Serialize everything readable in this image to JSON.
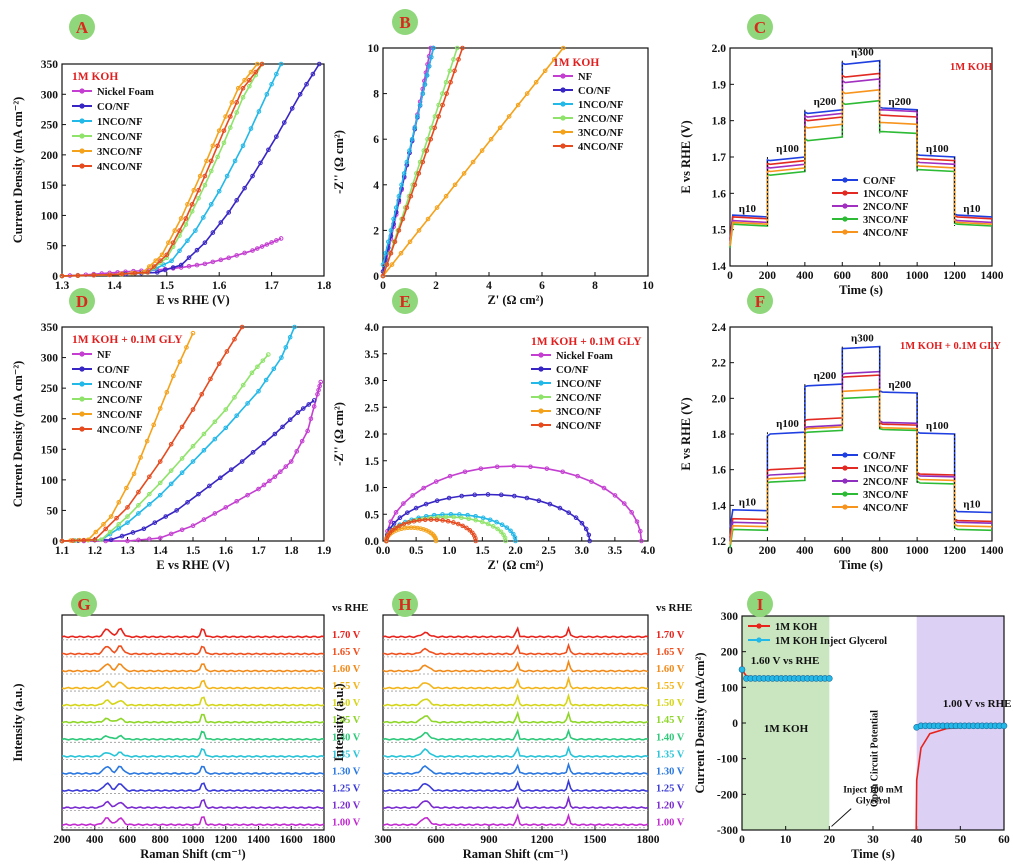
{
  "panel_badge_color": "#8fd77a",
  "panel_badge_text_color": "#d62b1e",
  "chart_data": [
    {
      "id": "A",
      "type": "line",
      "xlabel": "E vs RHE (V)",
      "ylabel": "Current Density (mA cm⁻²)",
      "xlim": [
        1.3,
        1.85
      ],
      "ylim": [
        0,
        350
      ],
      "xticks": [
        "1.3",
        "1.4",
        "1.5",
        "1.6",
        "1.7",
        "1.8"
      ],
      "yticks": [
        "0",
        "50",
        "100",
        "150",
        "200",
        "250",
        "300",
        "350"
      ],
      "legend_title": "1M KOH",
      "legend_title_color": "#e21d1d",
      "legend_position": "top-left",
      "series": [
        {
          "name": "Nickel Foam",
          "color": "#c43fd1",
          "x": [
            1.3,
            1.35,
            1.4,
            1.45,
            1.5,
            1.55,
            1.6,
            1.65,
            1.7,
            1.73,
            1.76
          ],
          "y": [
            0,
            2,
            5,
            8,
            10,
            14,
            20,
            30,
            42,
            52,
            62
          ]
        },
        {
          "name": "CO/NF",
          "color": "#3826c4",
          "x": [
            1.3,
            1.4,
            1.5,
            1.55,
            1.6,
            1.65,
            1.7,
            1.75,
            1.8,
            1.84
          ],
          "y": [
            0,
            2,
            6,
            18,
            55,
            105,
            165,
            230,
            300,
            350
          ]
        },
        {
          "name": "1NCO/NF",
          "color": "#22b8e8",
          "x": [
            1.3,
            1.4,
            1.48,
            1.53,
            1.58,
            1.63,
            1.68,
            1.73,
            1.76
          ],
          "y": [
            0,
            2,
            6,
            25,
            75,
            140,
            215,
            300,
            350
          ]
        },
        {
          "name": "2NCO/NF",
          "color": "#8fe36a",
          "x": [
            1.3,
            1.4,
            1.48,
            1.52,
            1.56,
            1.6,
            1.64,
            1.68,
            1.72
          ],
          "y": [
            0,
            2,
            6,
            30,
            85,
            150,
            220,
            295,
            350
          ]
        },
        {
          "name": "3NCO/NF",
          "color": "#f4a21b",
          "x": [
            1.3,
            1.4,
            1.47,
            1.51,
            1.55,
            1.59,
            1.63,
            1.67,
            1.71
          ],
          "y": [
            0,
            2,
            6,
            35,
            95,
            165,
            240,
            310,
            350
          ]
        },
        {
          "name": "4NCO/NF",
          "color": "#e54b1f",
          "x": [
            1.3,
            1.4,
            1.48,
            1.52,
            1.56,
            1.6,
            1.64,
            1.68,
            1.72
          ],
          "y": [
            0,
            2,
            6,
            35,
            95,
            165,
            240,
            310,
            350
          ]
        }
      ]
    },
    {
      "id": "B",
      "type": "line",
      "xlabel": "Z' (Ω cm²)",
      "ylabel": "-Z'' (Ω cm²)",
      "xlim": [
        0,
        10
      ],
      "ylim": [
        0,
        10
      ],
      "xticks": [
        "0",
        "2",
        "4",
        "6",
        "8",
        "10"
      ],
      "yticks": [
        "0",
        "2",
        "4",
        "6",
        "8",
        "10"
      ],
      "legend_title": "1M KOH",
      "legend_title_color": "#e21d1d",
      "legend_position": "top-right",
      "series": [
        {
          "name": "NF",
          "color": "#c43fd1",
          "x": [
            0,
            0.5,
            1,
            1.5,
            1.8
          ],
          "y": [
            0,
            2.7,
            5.4,
            8.2,
            10
          ]
        },
        {
          "name": "CO/NF",
          "color": "#3826c4",
          "x": [
            0,
            0.5,
            1,
            1.5,
            1.9
          ],
          "y": [
            0.2,
            2.8,
            5.4,
            8,
            10
          ]
        },
        {
          "name": "1NCO/NF",
          "color": "#22b8e8",
          "x": [
            0,
            0.5,
            1,
            1.5,
            1.9
          ],
          "y": [
            0.5,
            3,
            5.5,
            8,
            10
          ]
        },
        {
          "name": "2NCO/NF",
          "color": "#8fe36a",
          "x": [
            0,
            0.7,
            1.4,
            2.1,
            2.8
          ],
          "y": [
            0,
            2.5,
            5,
            7.5,
            10
          ]
        },
        {
          "name": "3NCO/NF",
          "color": "#f4a21b",
          "x": [
            0,
            1.7,
            3.4,
            5.1,
            6.8
          ],
          "y": [
            0,
            2.5,
            5,
            7.5,
            10
          ]
        },
        {
          "name": "4NCO/NF",
          "color": "#e54b1f",
          "x": [
            0,
            0.75,
            1.5,
            2.25,
            3
          ],
          "y": [
            0,
            2.5,
            5,
            7.5,
            10
          ]
        }
      ]
    },
    {
      "id": "C",
      "type": "line",
      "xlabel": "Time (s)",
      "ylabel": "E vs RHE (V)",
      "xlim": [
        0,
        1400
      ],
      "ylim": [
        1.4,
        2.0
      ],
      "xticks": [
        "0",
        "200",
        "400",
        "600",
        "800",
        "1000",
        "1200",
        "1400"
      ],
      "yticks": [
        "1.4",
        "1.5",
        "1.6",
        "1.7",
        "1.8",
        "1.9",
        "2.0"
      ],
      "legend_title": "1M KOH",
      "legend_title_color": "#e21d1d",
      "legend_position": "bottom-right",
      "step_labels": [
        "η10",
        "η100",
        "η200",
        "η300",
        "η200",
        "η100",
        "η10"
      ],
      "step_bounds": [
        0,
        200,
        400,
        600,
        800,
        1000,
        1200,
        1400
      ],
      "series": [
        {
          "name": "CO/NF",
          "color": "#1f3fe0",
          "levels": [
            1.535,
            1.7,
            1.83,
            1.965,
            1.83,
            1.7,
            1.535
          ]
        },
        {
          "name": "1NCO/NF",
          "color": "#e22a22",
          "levels": [
            1.53,
            1.69,
            1.81,
            1.93,
            1.81,
            1.69,
            1.53
          ]
        },
        {
          "name": "2NCO/NF",
          "color": "#a12fbf",
          "levels": [
            1.52,
            1.68,
            1.82,
            1.915,
            1.825,
            1.68,
            1.52
          ]
        },
        {
          "name": "3NCO/NF",
          "color": "#2dbb35",
          "levels": [
            1.51,
            1.66,
            1.755,
            1.855,
            1.765,
            1.66,
            1.51
          ]
        },
        {
          "name": "4NCO/NF",
          "color": "#f7941d",
          "levels": [
            1.515,
            1.67,
            1.79,
            1.885,
            1.79,
            1.67,
            1.515
          ]
        }
      ]
    },
    {
      "id": "D",
      "type": "line",
      "xlabel": "E vs RHE (V)",
      "ylabel": "Current Density (mA cm⁻²)",
      "xlim": [
        1.1,
        1.9
      ],
      "ylim": [
        0,
        350
      ],
      "xticks": [
        "1.1",
        "1.2",
        "1.3",
        "1.4",
        "1.5",
        "1.6",
        "1.7",
        "1.8",
        "1.9"
      ],
      "yticks": [
        "0",
        "50",
        "100",
        "150",
        "200",
        "250",
        "300",
        "350"
      ],
      "legend_title": "1M KOH + 0.1M GLY",
      "legend_title_color": "#e21d1d",
      "legend_position": "top-left",
      "series": [
        {
          "name": "NF",
          "color": "#c43fd1",
          "x": [
            1.1,
            1.3,
            1.4,
            1.5,
            1.6,
            1.7,
            1.75,
            1.8,
            1.85,
            1.88,
            1.89
          ],
          "y": [
            0,
            0,
            5,
            25,
            55,
            85,
            105,
            130,
            180,
            240,
            260
          ]
        },
        {
          "name": "CO/NF",
          "color": "#3826c4",
          "x": [
            1.1,
            1.25,
            1.35,
            1.45,
            1.55,
            1.65,
            1.75,
            1.82,
            1.87
          ],
          "y": [
            0,
            2,
            20,
            50,
            90,
            130,
            175,
            210,
            230
          ]
        },
        {
          "name": "1NCO/NF",
          "color": "#22b8e8",
          "x": [
            1.1,
            1.22,
            1.3,
            1.4,
            1.5,
            1.6,
            1.7,
            1.77,
            1.81
          ],
          "y": [
            0,
            2,
            30,
            75,
            130,
            185,
            245,
            300,
            350
          ]
        },
        {
          "name": "2NCO/NF",
          "color": "#8fe36a",
          "x": [
            1.1,
            1.22,
            1.3,
            1.4,
            1.5,
            1.6,
            1.68,
            1.73
          ],
          "y": [
            0,
            2,
            40,
            95,
            155,
            215,
            275,
            305
          ]
        },
        {
          "name": "3NCO/NF",
          "color": "#f4a21b",
          "x": [
            1.1,
            1.18,
            1.25,
            1.32,
            1.38,
            1.44,
            1.5
          ],
          "y": [
            0,
            2,
            40,
            110,
            190,
            270,
            340
          ]
        },
        {
          "name": "4NCO/NF",
          "color": "#e54b1f",
          "x": [
            1.1,
            1.2,
            1.3,
            1.4,
            1.5,
            1.58,
            1.65
          ],
          "y": [
            0,
            2,
            55,
            130,
            215,
            290,
            350
          ]
        }
      ]
    },
    {
      "id": "E",
      "type": "scatter",
      "xlabel": "Z' (Ω cm²)",
      "ylabel": "-Z'' (Ω cm²)",
      "xlim": [
        0,
        4
      ],
      "ylim": [
        0,
        4
      ],
      "xticks": [
        "0.0",
        "0.5",
        "1.0",
        "1.5",
        "2.0",
        "2.5",
        "3.0",
        "3.5",
        "4.0"
      ],
      "yticks": [
        "0.0",
        "0.5",
        "1.0",
        "1.5",
        "2.0",
        "2.5",
        "3.0",
        "3.5",
        "4.0"
      ],
      "legend_title": "1M KOH + 0.1M GLY",
      "legend_title_color": "#e21d1d",
      "legend_position": "top-right",
      "series": [
        {
          "name": "Nickel Foam",
          "color": "#c43fd1",
          "start": 0.05,
          "end": 3.9,
          "peak": 1.4
        },
        {
          "name": "CO/NF",
          "color": "#3826c4",
          "start": 0.05,
          "end": 3.12,
          "peak": 0.87
        },
        {
          "name": "1NCO/NF",
          "color": "#22b8e8",
          "start": 0.05,
          "end": 2.0,
          "peak": 0.5
        },
        {
          "name": "2NCO/NF",
          "color": "#8fe36a",
          "start": 0.05,
          "end": 1.85,
          "peak": 0.45
        },
        {
          "name": "3NCO/NF",
          "color": "#f4a21b",
          "start": 0.05,
          "end": 0.8,
          "peak": 0.25
        },
        {
          "name": "4NCO/NF",
          "color": "#e54b1f",
          "start": 0.05,
          "end": 1.4,
          "peak": 0.4
        }
      ]
    },
    {
      "id": "F",
      "type": "line",
      "xlabel": "Time (s)",
      "ylabel": "E vs RHE (V)",
      "xlim": [
        0,
        1400
      ],
      "ylim": [
        1.2,
        2.4
      ],
      "xticks": [
        "0",
        "200",
        "400",
        "600",
        "800",
        "1000",
        "1200",
        "1400"
      ],
      "yticks": [
        "1.2",
        "1.4",
        "1.6",
        "1.8",
        "2.0",
        "2.2",
        "2.4"
      ],
      "legend_title": "1M KOH + 0.1M GLY",
      "legend_title_color": "#e21d1d",
      "legend_position": "bottom-right",
      "step_labels": [
        "η10",
        "η100",
        "η200",
        "η300",
        "η200",
        "η100",
        "η10"
      ],
      "step_bounds": [
        0,
        200,
        400,
        600,
        800,
        1000,
        1200,
        1400
      ],
      "series": [
        {
          "name": "CO/NF",
          "color": "#1f3fe0",
          "levels": [
            1.37,
            1.81,
            2.08,
            2.29,
            2.03,
            1.8,
            1.36
          ]
        },
        {
          "name": "1NCO/NF",
          "color": "#e22a22",
          "levels": [
            1.32,
            1.61,
            1.89,
            2.13,
            1.85,
            1.57,
            1.31
          ]
        },
        {
          "name": "2NCO/NF",
          "color": "#8f2fbf",
          "levels": [
            1.3,
            1.58,
            1.85,
            2.15,
            1.86,
            1.56,
            1.3
          ]
        },
        {
          "name": "3NCO/NF",
          "color": "#2dbb35",
          "levels": [
            1.26,
            1.54,
            1.82,
            2.01,
            1.82,
            1.52,
            1.26
          ]
        },
        {
          "name": "4NCO/NF",
          "color": "#f7941d",
          "levels": [
            1.28,
            1.56,
            1.84,
            2.05,
            1.83,
            1.54,
            1.28
          ]
        }
      ]
    },
    {
      "id": "G",
      "type": "line",
      "xlabel": "Raman Shift (cm⁻¹)",
      "ylabel": "Intensity (a.u.)",
      "xlim": [
        200,
        1800
      ],
      "xticks": [
        "200",
        "400",
        "600",
        "800",
        "1000",
        "1200",
        "1400",
        "1600",
        "1800"
      ],
      "header": "vs RHE",
      "potentials": [
        "1.70 V",
        "1.65 V",
        "1.60 V",
        "1.55 V",
        "1.50 V",
        "1.45 V",
        "1.40 V",
        "1.35 V",
        "1.30 V",
        "1.25 V",
        "1.20 V",
        "1.00 V"
      ],
      "colors": [
        "#e8231c",
        "#f0501e",
        "#f28a1a",
        "#f2b51a",
        "#d5d51a",
        "#8fd62a",
        "#2ec97a",
        "#28c4d8",
        "#2a78e0",
        "#3a3ad8",
        "#7a2bd0",
        "#c22ad0"
      ],
      "peaks": [
        [
          475,
          28
        ],
        [
          555,
          25
        ],
        [
          1060,
          14
        ]
      ],
      "peak_strength": [
        1.0,
        1.0,
        0.9,
        0.8,
        0.6,
        0.45,
        0.4,
        0.5,
        0.9,
        0.9,
        0.7,
        0.85
      ]
    },
    {
      "id": "H",
      "type": "line",
      "xlabel": "Raman Shift (cm⁻¹)",
      "ylabel": "Intensity (a.u.)",
      "xlim": [
        300,
        1800
      ],
      "xticks": [
        "300",
        "600",
        "900",
        "1200",
        "1500",
        "1800"
      ],
      "header": "vs RHE",
      "potentials": [
        "1.70 V",
        "1.65 V",
        "1.60 V",
        "1.55 V",
        "1.50 V",
        "1.45 V",
        "1.40 V",
        "1.35 V",
        "1.30 V",
        "1.25 V",
        "1.20 V",
        "1.00 V"
      ],
      "colors": [
        "#e8231c",
        "#f0501e",
        "#f28a1a",
        "#f2b51a",
        "#d5d51a",
        "#8fd62a",
        "#2ec97a",
        "#28c4d8",
        "#2a78e0",
        "#3a3ad8",
        "#7a2bd0",
        "#c22ad0"
      ],
      "peaks": [
        [
          540,
          30
        ],
        [
          1060,
          10
        ],
        [
          1350,
          10
        ]
      ],
      "peak_strength": [
        0.5,
        0.6,
        0.7,
        0.7,
        0.8,
        0.8,
        0.8,
        0.85,
        0.9,
        0.9,
        0.9,
        0.9
      ]
    },
    {
      "id": "I",
      "type": "line",
      "xlabel": "Time (s)",
      "ylabel": "Current Density (mA/cm²)",
      "xlim": [
        0,
        60
      ],
      "ylim": [
        -300,
        300
      ],
      "xticks": [
        "0",
        "10",
        "20",
        "30",
        "40",
        "50",
        "60"
      ],
      "yticks": [
        "-300",
        "-200",
        "-100",
        "0",
        "100",
        "200",
        "300"
      ],
      "legend_position": "top-left",
      "series": [
        {
          "name": "1M KOH",
          "color": "#e8231c"
        },
        {
          "name": "1M KOH Inject Glycerol",
          "color": "#22b8e8"
        }
      ],
      "annotations": {
        "potential_1": "1.60 V vs RHE",
        "region_1": "1M KOH",
        "ocp": "Open Circuit Potential",
        "inject_line1": "Inject 100 mM",
        "inject_line2": "Glycerol",
        "potential_2": "1.00 V vs RHE"
      },
      "shade_1": {
        "range": [
          0,
          20
        ],
        "color": "#c9e6c0"
      },
      "shade_2": {
        "range": [
          40,
          60
        ],
        "color": "#ddd0f5"
      }
    }
  ]
}
